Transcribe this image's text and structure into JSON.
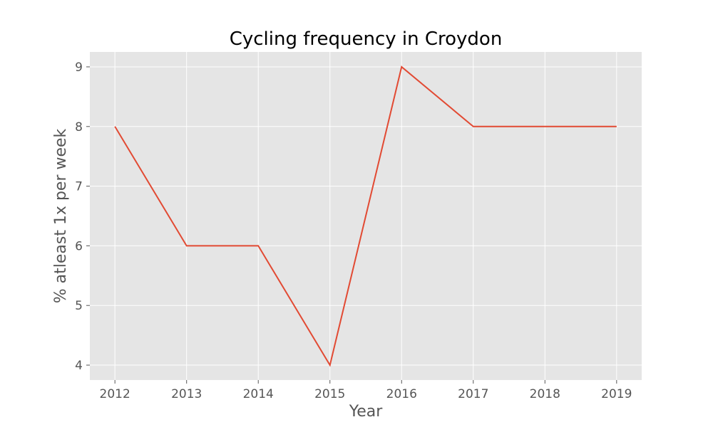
{
  "chart_data": {
    "type": "line",
    "title": "Cycling frequency in Croydon",
    "xlabel": "Year",
    "ylabel": "% atleast 1x per week",
    "x": [
      2012,
      2013,
      2014,
      2015,
      2016,
      2017,
      2018,
      2019
    ],
    "series": [
      {
        "values": [
          8,
          6,
          6,
          4,
          9,
          8,
          8,
          8
        ],
        "color": "#E24A33"
      }
    ],
    "xlim": [
      2011.65,
      2019.35
    ],
    "ylim": [
      3.75,
      9.25
    ],
    "x_ticks": [
      "2012",
      "2013",
      "2014",
      "2015",
      "2016",
      "2017",
      "2018",
      "2019"
    ],
    "y_ticks": [
      "4",
      "5",
      "6",
      "7",
      "8",
      "9"
    ],
    "grid": true,
    "style": {
      "plot_background": "#E5E5E5",
      "grid_color": "#FFFFFF",
      "text_color": "#555555",
      "title_color": "#000000"
    }
  }
}
